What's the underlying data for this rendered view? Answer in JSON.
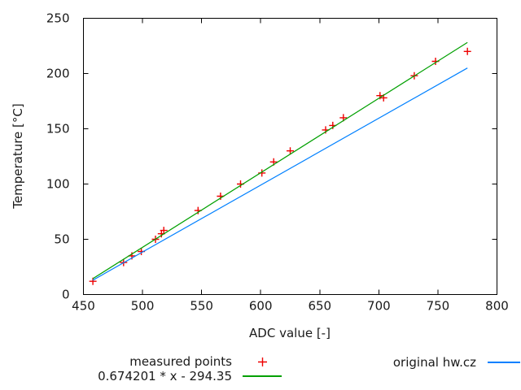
{
  "figure": {
    "background": "#ffffff",
    "text_color": "#1a1a1a"
  },
  "chart_data": {
    "type": "scatter",
    "title": "",
    "xlabel": "ADC value [-]",
    "ylabel": "Temperature [°C]",
    "xlim": [
      450,
      800
    ],
    "ylim": [
      0,
      250
    ],
    "xticks": [
      450,
      500,
      550,
      600,
      650,
      700,
      750,
      800
    ],
    "yticks": [
      0,
      50,
      100,
      150,
      200,
      250
    ],
    "grid": false,
    "legend_position": "below-plot",
    "series": [
      {
        "id": "measured-points",
        "name": "measured points",
        "type": "points",
        "marker": "plus",
        "color": "#ee0000",
        "points": [
          [
            458,
            12
          ],
          [
            484,
            29
          ],
          [
            491,
            35
          ],
          [
            499,
            39
          ],
          [
            511,
            50
          ],
          [
            516,
            55
          ],
          [
            518,
            58
          ],
          [
            547,
            76
          ],
          [
            566,
            89
          ],
          [
            583,
            100
          ],
          [
            601,
            110
          ],
          [
            611,
            120
          ],
          [
            625,
            130
          ],
          [
            655,
            149
          ],
          [
            661,
            153
          ],
          [
            670,
            160
          ],
          [
            701,
            180
          ],
          [
            704,
            178
          ],
          [
            730,
            198
          ],
          [
            748,
            211
          ],
          [
            775,
            220
          ]
        ]
      },
      {
        "id": "fit-line",
        "name": "0.674201 * x - 294.35",
        "type": "line",
        "color": "#00a000",
        "slope": 0.674201,
        "intercept": -294.35,
        "x_range": [
          458,
          775
        ]
      },
      {
        "id": "original-line",
        "name": "original hw.cz",
        "type": "line",
        "color": "#0080ff",
        "points": [
          [
            458,
            13
          ],
          [
            775,
            205
          ]
        ]
      }
    ]
  }
}
